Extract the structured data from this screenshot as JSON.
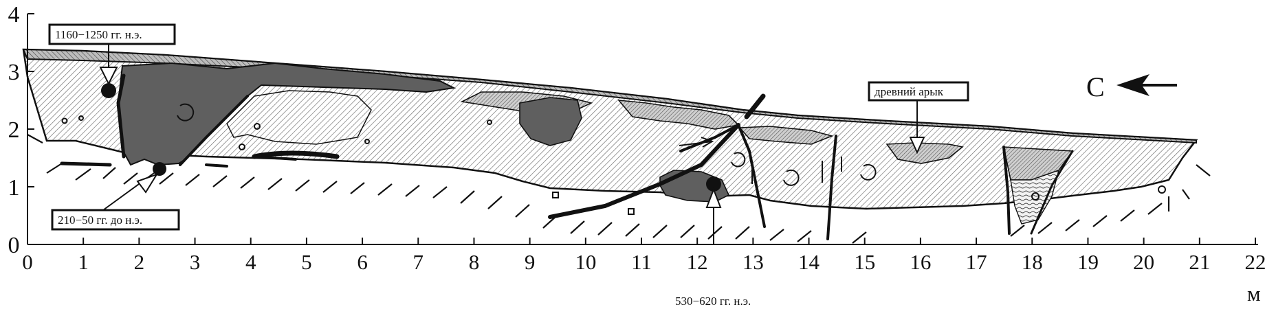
{
  "section": {
    "x_unit": "м",
    "x_ticks": [
      "0",
      "1",
      "2",
      "3",
      "4",
      "5",
      "6",
      "7",
      "8",
      "9",
      "10",
      "11",
      "12",
      "13",
      "14",
      "15",
      "16",
      "17",
      "18",
      "19",
      "20",
      "21",
      "22"
    ],
    "y_ticks": [
      "0",
      "1",
      "2",
      "3",
      "4"
    ],
    "x_range": [
      0,
      22
    ],
    "y_range": [
      0,
      4
    ]
  },
  "labels": {
    "date_top": "1160−1250 гг. н.э.",
    "date_bottom_left": "210−50 гг. до н.э.",
    "date_bottom_center": "530−620 гг. н.э.",
    "ancient_ditch": "древний арык",
    "north_letter": "С"
  },
  "colors": {
    "dark_fill": "#5f5f5f",
    "medium_fill": "#b8b8b8",
    "light_fill": "#dedede",
    "line": "#111111"
  },
  "icons": {
    "north_arrow": "left-arrow-icon",
    "sample_marker": "filled-circle-icon"
  }
}
